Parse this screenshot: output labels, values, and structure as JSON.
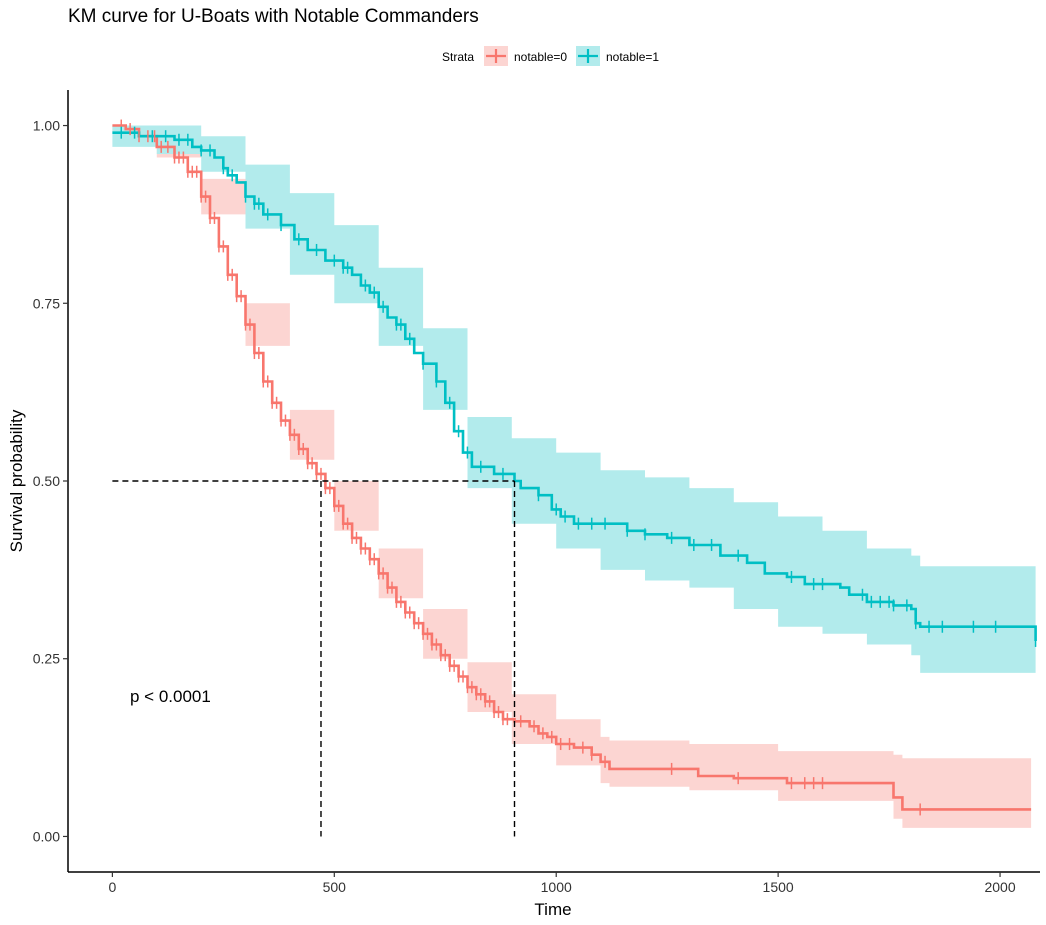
{
  "chart_data": {
    "type": "line",
    "title": "KM curve for U-Boats with Notable Commanders",
    "xlabel": "Time",
    "ylabel": "Survival probability",
    "xlim": [
      -100,
      2090
    ],
    "ylim": [
      -0.05,
      1.05
    ],
    "x_ticks": [
      0,
      500,
      1000,
      1500,
      2000
    ],
    "y_ticks": [
      0.0,
      0.25,
      0.5,
      0.75,
      1.0
    ],
    "y_tick_labels": [
      "0.00",
      "0.25",
      "0.50",
      "0.75",
      "1.00"
    ],
    "grid": false,
    "legend": {
      "title": "Strata",
      "position": "top"
    },
    "annotation": "p < 0.0001",
    "median_lines": {
      "y": 0.5,
      "x": [
        470,
        906
      ]
    },
    "series": [
      {
        "name": "notable=0",
        "color": "#F8766D",
        "fill": "#FCD5D2",
        "points": [
          [
            0,
            1.0
          ],
          [
            30,
            0.995
          ],
          [
            60,
            0.985
          ],
          [
            100,
            0.97
          ],
          [
            140,
            0.955
          ],
          [
            170,
            0.935
          ],
          [
            200,
            0.9
          ],
          [
            220,
            0.87
          ],
          [
            240,
            0.83
          ],
          [
            260,
            0.79
          ],
          [
            280,
            0.76
          ],
          [
            300,
            0.72
          ],
          [
            320,
            0.68
          ],
          [
            340,
            0.64
          ],
          [
            360,
            0.61
          ],
          [
            380,
            0.585
          ],
          [
            400,
            0.565
          ],
          [
            420,
            0.545
          ],
          [
            440,
            0.525
          ],
          [
            460,
            0.51
          ],
          [
            480,
            0.49
          ],
          [
            500,
            0.465
          ],
          [
            520,
            0.44
          ],
          [
            540,
            0.42
          ],
          [
            560,
            0.405
          ],
          [
            580,
            0.39
          ],
          [
            600,
            0.37
          ],
          [
            620,
            0.35
          ],
          [
            640,
            0.33
          ],
          [
            660,
            0.315
          ],
          [
            680,
            0.3
          ],
          [
            700,
            0.285
          ],
          [
            720,
            0.27
          ],
          [
            740,
            0.255
          ],
          [
            760,
            0.24
          ],
          [
            780,
            0.225
          ],
          [
            800,
            0.21
          ],
          [
            820,
            0.2
          ],
          [
            840,
            0.19
          ],
          [
            860,
            0.175
          ],
          [
            880,
            0.165
          ],
          [
            906,
            0.162
          ],
          [
            940,
            0.155
          ],
          [
            960,
            0.145
          ],
          [
            980,
            0.14
          ],
          [
            1000,
            0.13
          ],
          [
            1040,
            0.125
          ],
          [
            1080,
            0.115
          ],
          [
            1100,
            0.105
          ],
          [
            1120,
            0.095
          ],
          [
            1300,
            0.095
          ],
          [
            1320,
            0.085
          ],
          [
            1400,
            0.082
          ],
          [
            1520,
            0.075
          ],
          [
            1740,
            0.075
          ],
          [
            1760,
            0.055
          ],
          [
            1780,
            0.038
          ],
          [
            2070,
            0.038
          ]
        ],
        "lower": [
          [
            0,
            0.99
          ],
          [
            100,
            0.955
          ],
          [
            200,
            0.875
          ],
          [
            300,
            0.69
          ],
          [
            400,
            0.53
          ],
          [
            500,
            0.43
          ],
          [
            600,
            0.335
          ],
          [
            700,
            0.25
          ],
          [
            800,
            0.175
          ],
          [
            900,
            0.13
          ],
          [
            1000,
            0.1
          ],
          [
            1100,
            0.075
          ],
          [
            1120,
            0.07
          ],
          [
            1300,
            0.065
          ],
          [
            1500,
            0.05
          ],
          [
            1740,
            0.05
          ],
          [
            1760,
            0.025
          ],
          [
            1780,
            0.012
          ],
          [
            2070,
            0.012
          ]
        ],
        "upper": [
          [
            0,
            1.0
          ],
          [
            100,
            0.98
          ],
          [
            200,
            0.925
          ],
          [
            300,
            0.75
          ],
          [
            400,
            0.6
          ],
          [
            500,
            0.5
          ],
          [
            600,
            0.405
          ],
          [
            700,
            0.32
          ],
          [
            800,
            0.245
          ],
          [
            900,
            0.2
          ],
          [
            1000,
            0.165
          ],
          [
            1100,
            0.14
          ],
          [
            1120,
            0.135
          ],
          [
            1300,
            0.13
          ],
          [
            1500,
            0.12
          ],
          [
            1740,
            0.12
          ],
          [
            1760,
            0.115
          ],
          [
            1780,
            0.11
          ],
          [
            2070,
            0.11
          ]
        ],
        "censor_x": [
          20,
          40,
          60,
          80,
          95,
          110,
          125,
          140,
          150,
          160,
          170,
          180,
          190,
          200,
          210,
          220,
          230,
          240,
          250,
          260,
          270,
          280,
          290,
          300,
          310,
          320,
          330,
          340,
          350,
          360,
          370,
          380,
          390,
          400,
          410,
          420,
          430,
          440,
          450,
          460,
          470,
          480,
          490,
          500,
          510,
          520,
          530,
          540,
          550,
          560,
          570,
          580,
          590,
          600,
          610,
          620,
          630,
          640,
          650,
          660,
          670,
          680,
          690,
          700,
          710,
          720,
          730,
          740,
          750,
          760,
          770,
          780,
          790,
          800,
          810,
          820,
          830,
          840,
          850,
          860,
          870,
          880,
          890,
          920,
          950,
          970,
          990,
          1010,
          1030,
          1060,
          1080,
          1110,
          1260,
          1410,
          1530,
          1560,
          1580,
          1600,
          1820
        ]
      },
      {
        "name": "notable=1",
        "color": "#00BFC4",
        "fill": "#B2EBEC",
        "points": [
          [
            0,
            0.99
          ],
          [
            60,
            0.985
          ],
          [
            100,
            0.985
          ],
          [
            140,
            0.98
          ],
          [
            180,
            0.97
          ],
          [
            200,
            0.965
          ],
          [
            230,
            0.955
          ],
          [
            250,
            0.94
          ],
          [
            260,
            0.93
          ],
          [
            280,
            0.92
          ],
          [
            300,
            0.9
          ],
          [
            320,
            0.89
          ],
          [
            340,
            0.875
          ],
          [
            380,
            0.86
          ],
          [
            410,
            0.84
          ],
          [
            440,
            0.825
          ],
          [
            480,
            0.81
          ],
          [
            520,
            0.8
          ],
          [
            540,
            0.79
          ],
          [
            560,
            0.775
          ],
          [
            580,
            0.765
          ],
          [
            600,
            0.745
          ],
          [
            620,
            0.73
          ],
          [
            640,
            0.72
          ],
          [
            660,
            0.7
          ],
          [
            680,
            0.68
          ],
          [
            700,
            0.665
          ],
          [
            730,
            0.64
          ],
          [
            750,
            0.61
          ],
          [
            770,
            0.57
          ],
          [
            790,
            0.54
          ],
          [
            810,
            0.52
          ],
          [
            860,
            0.51
          ],
          [
            906,
            0.5
          ],
          [
            920,
            0.49
          ],
          [
            960,
            0.48
          ],
          [
            990,
            0.46
          ],
          [
            1010,
            0.45
          ],
          [
            1040,
            0.44
          ],
          [
            1100,
            0.44
          ],
          [
            1160,
            0.43
          ],
          [
            1200,
            0.425
          ],
          [
            1250,
            0.42
          ],
          [
            1300,
            0.41
          ],
          [
            1370,
            0.395
          ],
          [
            1430,
            0.385
          ],
          [
            1470,
            0.37
          ],
          [
            1520,
            0.365
          ],
          [
            1560,
            0.355
          ],
          [
            1640,
            0.35
          ],
          [
            1660,
            0.34
          ],
          [
            1700,
            0.33
          ],
          [
            1760,
            0.325
          ],
          [
            1800,
            0.32
          ],
          [
            1810,
            0.3
          ],
          [
            1820,
            0.295
          ],
          [
            2070,
            0.295
          ],
          [
            2080,
            0.275
          ]
        ],
        "lower": [
          [
            0,
            0.97
          ],
          [
            100,
            0.96
          ],
          [
            200,
            0.935
          ],
          [
            300,
            0.855
          ],
          [
            400,
            0.79
          ],
          [
            500,
            0.75
          ],
          [
            600,
            0.69
          ],
          [
            700,
            0.6
          ],
          [
            800,
            0.49
          ],
          [
            900,
            0.44
          ],
          [
            1000,
            0.405
          ],
          [
            1100,
            0.375
          ],
          [
            1200,
            0.36
          ],
          [
            1300,
            0.35
          ],
          [
            1400,
            0.32
          ],
          [
            1500,
            0.295
          ],
          [
            1600,
            0.285
          ],
          [
            1700,
            0.27
          ],
          [
            1800,
            0.255
          ],
          [
            1820,
            0.23
          ],
          [
            2070,
            0.23
          ],
          [
            2080,
            0.21
          ]
        ],
        "upper": [
          [
            0,
            1.0
          ],
          [
            100,
            1.0
          ],
          [
            200,
            0.985
          ],
          [
            300,
            0.945
          ],
          [
            400,
            0.905
          ],
          [
            500,
            0.86
          ],
          [
            600,
            0.8
          ],
          [
            700,
            0.715
          ],
          [
            800,
            0.59
          ],
          [
            900,
            0.56
          ],
          [
            1000,
            0.54
          ],
          [
            1100,
            0.515
          ],
          [
            1200,
            0.505
          ],
          [
            1300,
            0.49
          ],
          [
            1400,
            0.47
          ],
          [
            1500,
            0.45
          ],
          [
            1600,
            0.43
          ],
          [
            1700,
            0.405
          ],
          [
            1800,
            0.395
          ],
          [
            1820,
            0.38
          ],
          [
            2070,
            0.38
          ],
          [
            2080,
            0.365
          ]
        ],
        "censor_x": [
          20,
          50,
          90,
          120,
          150,
          170,
          200,
          220,
          250,
          270,
          300,
          320,
          330,
          350,
          380,
          420,
          460,
          500,
          520,
          530,
          570,
          590,
          610,
          640,
          650,
          670,
          700,
          730,
          760,
          780,
          800,
          830,
          880,
          960,
          1000,
          1020,
          1050,
          1080,
          1110,
          1160,
          1200,
          1260,
          1310,
          1350,
          1410,
          1530,
          1580,
          1600,
          1690,
          1710,
          1730,
          1750,
          1760,
          1790,
          1810,
          1840,
          1870,
          1940,
          1990,
          2080
        ]
      }
    ]
  }
}
